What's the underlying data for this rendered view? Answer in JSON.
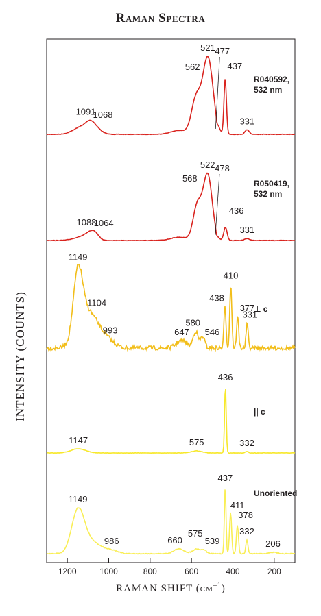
{
  "chart_data": {
    "type": "line",
    "title": "Raman Spectra",
    "xlabel": "RAMAN SHIFT (cm",
    "xlabel_sup": "–1",
    "xlabel_close": ")",
    "ylabel": "INTENSITY (COUNTS)",
    "xlim": [
      1300,
      100
    ],
    "xticks": [
      1200,
      1000,
      800,
      600,
      400,
      200
    ],
    "grid": false,
    "series": [
      {
        "name": "R040592, 532 nm",
        "color": "#d9231e",
        "peaks": [
          {
            "x": 1091,
            "label": "1091"
          },
          {
            "x": 1068,
            "label": "1068"
          },
          {
            "x": 562,
            "label": "562"
          },
          {
            "x": 521,
            "label": "521"
          },
          {
            "x": 477,
            "label": "477"
          },
          {
            "x": 437,
            "label": "437"
          },
          {
            "x": 331,
            "label": "331"
          }
        ]
      },
      {
        "name": "R050419, 532 nm",
        "color": "#d9231e",
        "peaks": [
          {
            "x": 1088,
            "label": "1088"
          },
          {
            "x": 1064,
            "label": "1064"
          },
          {
            "x": 568,
            "label": "568"
          },
          {
            "x": 522,
            "label": "522"
          },
          {
            "x": 478,
            "label": "478"
          },
          {
            "x": 436,
            "label": "436"
          },
          {
            "x": 331,
            "label": "331"
          }
        ]
      },
      {
        "name": "⊥ c",
        "color": "#f2be1a",
        "peaks": [
          {
            "x": 1149,
            "label": "1149"
          },
          {
            "x": 1104,
            "label": "1104"
          },
          {
            "x": 993,
            "label": "993"
          },
          {
            "x": 647,
            "label": "647"
          },
          {
            "x": 580,
            "label": "580"
          },
          {
            "x": 546,
            "label": "546"
          },
          {
            "x": 438,
            "label": "438"
          },
          {
            "x": 410,
            "label": "410"
          },
          {
            "x": 377,
            "label": "377"
          },
          {
            "x": 331,
            "label": "331"
          }
        ]
      },
      {
        "name": "|| c",
        "color": "#f7e82a",
        "peaks": [
          {
            "x": 1147,
            "label": "1147"
          },
          {
            "x": 575,
            "label": "575"
          },
          {
            "x": 436,
            "label": "436"
          },
          {
            "x": 332,
            "label": "332"
          }
        ]
      },
      {
        "name": "Unoriented",
        "color": "#f9ee55",
        "peaks": [
          {
            "x": 1149,
            "label": "1149"
          },
          {
            "x": 986,
            "label": "986"
          },
          {
            "x": 660,
            "label": "660"
          },
          {
            "x": 575,
            "label": "575"
          },
          {
            "x": 539,
            "label": "539"
          },
          {
            "x": 437,
            "label": "437"
          },
          {
            "x": 411,
            "label": "411"
          },
          {
            "x": 378,
            "label": "378"
          },
          {
            "x": 332,
            "label": "332"
          },
          {
            "x": 206,
            "label": "206"
          }
        ]
      }
    ]
  }
}
